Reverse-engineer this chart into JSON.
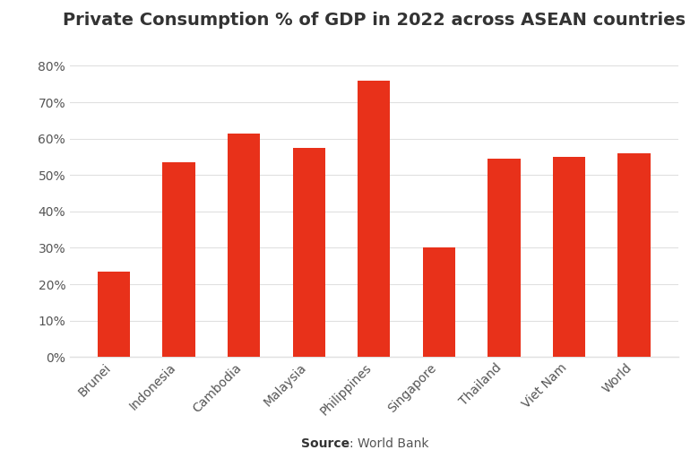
{
  "title": "Private Consumption % of GDP in 2022 across ASEAN countries",
  "categories": [
    "Brunei",
    "Indonesia",
    "Cambodia",
    "Malaysia",
    "Philippines",
    "Singapore",
    "Thailand",
    "Viet Nam",
    "World"
  ],
  "values": [
    23.5,
    53.5,
    61.5,
    57.5,
    76.0,
    30.0,
    54.5,
    55.0,
    56.0
  ],
  "bar_color": "#e8311a",
  "ylim": [
    0,
    85
  ],
  "yticks": [
    0,
    10,
    20,
    30,
    40,
    50,
    60,
    70,
    80
  ],
  "source_bold": "Source",
  "source_text": ": World Bank",
  "background_color": "#ffffff",
  "title_fontsize": 14,
  "tick_fontsize": 10,
  "source_fontsize": 10,
  "title_color": "#333333",
  "tick_color": "#555555",
  "grid_color": "#e0e0e0",
  "bar_width": 0.5
}
